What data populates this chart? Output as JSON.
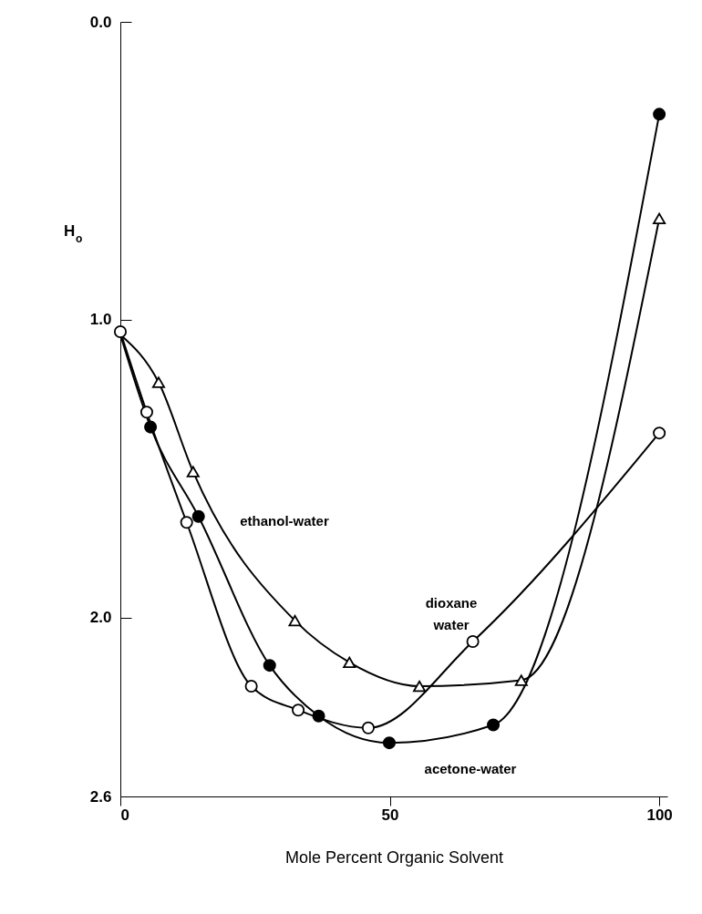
{
  "chart_data": {
    "type": "line",
    "xlabel": "Mole Percent Organic Solvent",
    "ylabel": "H$_{o}$",
    "xlim": [
      0,
      101.5
    ],
    "xticks": [
      0,
      50,
      100
    ],
    "ylim": [
      2.6,
      0
    ],
    "yticks": [
      {
        "value": 0,
        "label": "0.0"
      },
      {
        "value": 1,
        "label": "1.0"
      },
      {
        "value": 2,
        "label": "2.0"
      },
      {
        "value": 2.6,
        "label": "2.6"
      }
    ],
    "grid": false,
    "series": [
      {
        "marker": "none",
        "color": "#000000",
        "x": [
          0,
          7.1,
          13.5,
          32.4,
          42.5,
          55.5,
          74.4,
          100
        ],
        "values": [
          1.05,
          1.21,
          1.51,
          2.01,
          2.15,
          2.23,
          2.21,
          0.66
        ]
      },
      {
        "marker": "none",
        "color": "#000000",
        "x": [
          0,
          5.6,
          14.5,
          27.7,
          36.8,
          49.9,
          69.2,
          100
        ],
        "values": [
          1.05,
          1.36,
          1.66,
          2.16,
          2.33,
          2.42,
          2.36,
          0.31
        ]
      },
      {
        "marker": "none",
        "color": "#000000",
        "x": [
          0,
          4.9,
          12.3,
          24.3,
          33,
          46,
          65.4,
          100
        ],
        "values": [
          1.04,
          1.31,
          1.68,
          2.23,
          2.31,
          2.37,
          2.08,
          1.38
        ]
      },
      {
        "type": "scatter",
        "marker": "triangle",
        "color": "#ffffff",
        "x": [
          7.1,
          13.5,
          32.4,
          42.5,
          55.5,
          74.4,
          100
        ],
        "values": [
          1.21,
          1.51,
          2.01,
          2.15,
          2.23,
          2.21,
          0.66
        ]
      },
      {
        "type": "scatter",
        "marker": "circle",
        "color": "#000000",
        "x": [
          5.6,
          14.5,
          27.7,
          36.8,
          49.9,
          69.2,
          100
        ],
        "values": [
          1.36,
          1.66,
          2.16,
          2.33,
          2.42,
          2.36,
          0.31
        ]
      },
      {
        "type": "scatter",
        "marker": "circle",
        "color": "#ffffff",
        "x": [
          0,
          4.9,
          12.3,
          24.3,
          33,
          46,
          65.4,
          100
        ],
        "values": [
          1.04,
          1.31,
          1.68,
          2.23,
          2.31,
          2.37,
          2.08,
          1.38
        ]
      }
    ],
    "annotations": [
      "ethanol-water",
      "dioxane water",
      "acetone-water"
    ]
  }
}
